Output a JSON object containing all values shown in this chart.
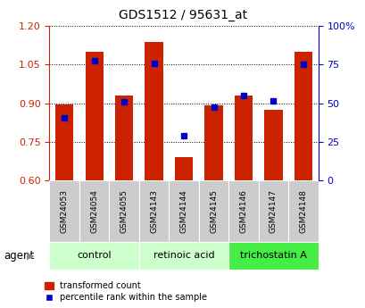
{
  "title": "GDS1512 / 95631_at",
  "samples": [
    "GSM24053",
    "GSM24054",
    "GSM24055",
    "GSM24143",
    "GSM24144",
    "GSM24145",
    "GSM24146",
    "GSM24147",
    "GSM24148"
  ],
  "red_values": [
    0.895,
    1.1,
    0.93,
    1.14,
    0.69,
    0.89,
    0.93,
    0.875,
    1.1
  ],
  "blue_values": [
    0.842,
    1.065,
    0.905,
    1.055,
    0.775,
    0.885,
    0.93,
    0.91,
    1.05
  ],
  "ylim": [
    0.6,
    1.2
  ],
  "y2lim": [
    0,
    100
  ],
  "yticks": [
    0.6,
    0.75,
    0.9,
    1.05,
    1.2
  ],
  "y2ticks": [
    0,
    25,
    50,
    75,
    100
  ],
  "y2ticklabels": [
    "0",
    "25",
    "50",
    "75",
    "100%"
  ],
  "bar_color": "#cc2200",
  "dot_color": "#0000cc",
  "bar_bottom": 0.6,
  "group_starts": [
    0,
    3,
    6
  ],
  "group_ends": [
    3,
    6,
    9
  ],
  "group_labels": [
    "control",
    "retinoic acid",
    "trichostatin A"
  ],
  "group_colors": [
    "#ccffcc",
    "#ccffcc",
    "#44ee44"
  ],
  "legend_red": "transformed count",
  "legend_blue": "percentile rank within the sample",
  "agent_label": "agent",
  "left_axis_color": "#cc2200",
  "right_axis_color": "#0000cc",
  "sample_bg": "#cccccc",
  "bar_width": 0.6
}
